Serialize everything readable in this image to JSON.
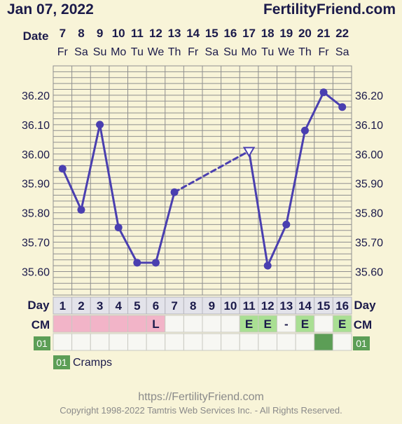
{
  "header": {
    "date": "Jan 07, 2022",
    "brand": "FertilityFriend.com"
  },
  "date_row_label": "Date",
  "days": [
    {
      "date": "7",
      "dow": "Fr"
    },
    {
      "date": "8",
      "dow": "Sa"
    },
    {
      "date": "9",
      "dow": "Su"
    },
    {
      "date": "10",
      "dow": "Mo"
    },
    {
      "date": "11",
      "dow": "Tu"
    },
    {
      "date": "12",
      "dow": "We"
    },
    {
      "date": "13",
      "dow": "Th"
    },
    {
      "date": "14",
      "dow": "Fr"
    },
    {
      "date": "15",
      "dow": "Sa"
    },
    {
      "date": "16",
      "dow": "Su"
    },
    {
      "date": "17",
      "dow": "Mo"
    },
    {
      "date": "18",
      "dow": "Tu"
    },
    {
      "date": "19",
      "dow": "We"
    },
    {
      "date": "20",
      "dow": "Th"
    },
    {
      "date": "21",
      "dow": "Fr"
    },
    {
      "date": "22",
      "dow": "Sa"
    }
  ],
  "chart_data": {
    "type": "line",
    "x": [
      "1",
      "2",
      "3",
      "4",
      "5",
      "6",
      "7",
      "8",
      "9",
      "10",
      "11",
      "12",
      "13",
      "14",
      "15",
      "16"
    ],
    "temps": [
      35.95,
      35.81,
      36.1,
      35.75,
      35.63,
      35.63,
      35.87,
      null,
      null,
      null,
      36.01,
      35.62,
      35.76,
      36.08,
      36.21,
      36.16
    ],
    "discarded": [
      false,
      false,
      false,
      false,
      false,
      false,
      false,
      false,
      false,
      false,
      true,
      false,
      false,
      false,
      false,
      false
    ],
    "y_ticks": [
      "36.20",
      "36.10",
      "36.00",
      "35.90",
      "35.80",
      "35.70",
      "35.60"
    ],
    "y_tick_values": [
      36.2,
      36.1,
      36.0,
      35.9,
      35.8,
      35.7,
      35.6
    ],
    "ylim": [
      35.52,
      36.3
    ],
    "grid": true,
    "line_color": "#4a3fb0"
  },
  "day_row_label": "Day",
  "cm_label": "CM",
  "cm_values": [
    "",
    "",
    "",
    "",
    "",
    "L",
    "",
    "",
    "",
    "",
    "E",
    "E",
    "-",
    "E",
    "",
    "E"
  ],
  "cm_state": [
    "menses",
    "menses",
    "menses",
    "menses",
    "menses",
    "menses",
    "none",
    "none",
    "none",
    "none",
    "egg",
    "egg",
    "none",
    "egg",
    "none",
    "egg"
  ],
  "symptom_code": "01",
  "symptom_marked": [
    false,
    false,
    false,
    false,
    false,
    false,
    false,
    false,
    false,
    false,
    false,
    false,
    false,
    false,
    true,
    false
  ],
  "legend": {
    "code": "01",
    "label": "Cramps"
  },
  "footer": {
    "url": "https://FertilityFriend.com",
    "copyright": "Copyright 1998-2022 Tamtris Web Services Inc. - All Rights Reserved."
  },
  "colors": {
    "background": "#f8f4d8",
    "text": "#1b1a4a",
    "grid": "#8f8f8f",
    "day_row": "#e3e3ea",
    "menses": "#f2b4c8",
    "egg_white": "#a9df93",
    "symptom": "#5c9e56",
    "cell_empty": "#f7f7f3"
  }
}
